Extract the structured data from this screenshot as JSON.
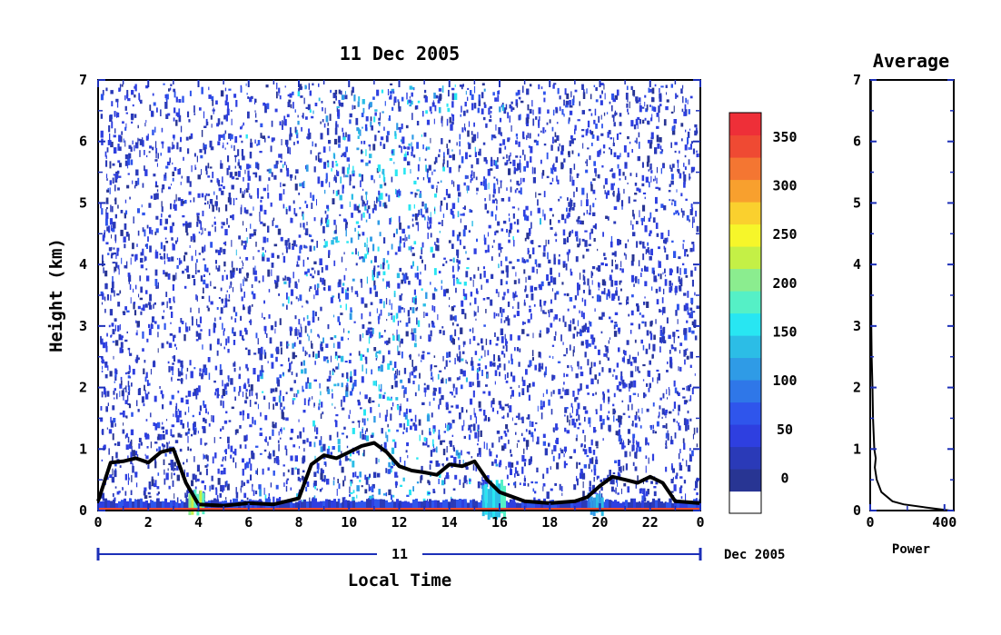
{
  "chart_data": [
    {
      "type": "heatmap",
      "title": "11 Dec 2005",
      "xlabel": "Local Time",
      "ylabel": "Height (km)",
      "xlim": [
        0,
        24
      ],
      "ylim": [
        0,
        7
      ],
      "x_ticks": [
        "0",
        "2",
        "4",
        "6",
        "8",
        "10",
        "12",
        "14",
        "16",
        "18",
        "20",
        "22",
        "0"
      ],
      "y_ticks": [
        "0",
        "1",
        "2",
        "3",
        "4",
        "5",
        "6",
        "7"
      ],
      "date_bar": {
        "day": "11",
        "month_year": "Dec 2005"
      },
      "colorbar": {
        "min": 0,
        "max": 375,
        "tick_labels": [
          "0",
          "50",
          "100",
          "150",
          "200",
          "250",
          "300",
          "350"
        ],
        "colors": [
          "#ffffff",
          "#283593",
          "#2a3ab8",
          "#2e3fe0",
          "#2f55ec",
          "#2f77e8",
          "#2f9be6",
          "#2cbde6",
          "#28e6f2",
          "#55f0c6",
          "#8bed8f",
          "#c4f046",
          "#f6f62a",
          "#fad02e",
          "#f8a02e",
          "#f47632",
          "#ef4a33",
          "#ee2f38"
        ]
      },
      "boundary_layer": [
        [
          0.0,
          0.15
        ],
        [
          0.5,
          0.78
        ],
        [
          1.0,
          0.8
        ],
        [
          1.5,
          0.85
        ],
        [
          2.0,
          0.78
        ],
        [
          2.5,
          0.95
        ],
        [
          3.0,
          1.0
        ],
        [
          3.5,
          0.45
        ],
        [
          4.0,
          0.1
        ],
        [
          5.0,
          0.08
        ],
        [
          6.0,
          0.12
        ],
        [
          7.0,
          0.1
        ],
        [
          8.0,
          0.2
        ],
        [
          8.5,
          0.75
        ],
        [
          9.0,
          0.9
        ],
        [
          9.5,
          0.85
        ],
        [
          10.0,
          0.95
        ],
        [
          10.5,
          1.05
        ],
        [
          11.0,
          1.1
        ],
        [
          11.5,
          0.95
        ],
        [
          12.0,
          0.72
        ],
        [
          12.5,
          0.65
        ],
        [
          13.0,
          0.62
        ],
        [
          13.5,
          0.58
        ],
        [
          14.0,
          0.75
        ],
        [
          14.5,
          0.72
        ],
        [
          15.0,
          0.8
        ],
        [
          15.5,
          0.5
        ],
        [
          16.0,
          0.3
        ],
        [
          17.0,
          0.15
        ],
        [
          18.0,
          0.12
        ],
        [
          19.0,
          0.15
        ],
        [
          19.5,
          0.22
        ],
        [
          20.0,
          0.4
        ],
        [
          20.5,
          0.55
        ],
        [
          21.0,
          0.5
        ],
        [
          21.5,
          0.45
        ],
        [
          22.0,
          0.55
        ],
        [
          22.5,
          0.45
        ],
        [
          23.0,
          0.15
        ],
        [
          24.0,
          0.12
        ]
      ]
    },
    {
      "type": "line",
      "title": "Average",
      "xlabel": "Power",
      "ylabel": "",
      "xlim": [
        0,
        450
      ],
      "ylim": [
        0,
        7
      ],
      "x_ticks": [
        "0",
        "400"
      ],
      "y_ticks": [
        "0",
        "1",
        "2",
        "3",
        "4",
        "5",
        "6",
        "7"
      ],
      "series": [
        {
          "x": [
            430,
            300,
            180,
            120,
            60,
            35,
            25,
            30,
            22,
            15,
            12,
            8,
            6,
            5,
            5,
            4,
            4,
            4
          ],
          "y": [
            0.0,
            0.05,
            0.1,
            0.15,
            0.3,
            0.5,
            0.7,
            0.85,
            1.0,
            1.5,
            2.0,
            2.5,
            3.0,
            4.0,
            5.0,
            6.0,
            6.5,
            7.0
          ]
        }
      ]
    }
  ]
}
